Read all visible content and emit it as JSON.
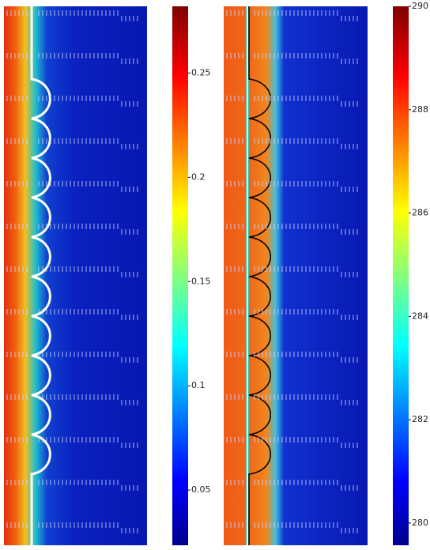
{
  "chart_data": [
    {
      "type": "heatmap",
      "clim": [
        0.0235,
        0.282
      ],
      "cticks": [
        0.05,
        0.1,
        0.15,
        0.2,
        0.25
      ]
    },
    {
      "type": "heatmap",
      "clim": [
        279.57,
        290
      ],
      "cticks": [
        280,
        282,
        284,
        286,
        288,
        290
      ]
    }
  ]
}
